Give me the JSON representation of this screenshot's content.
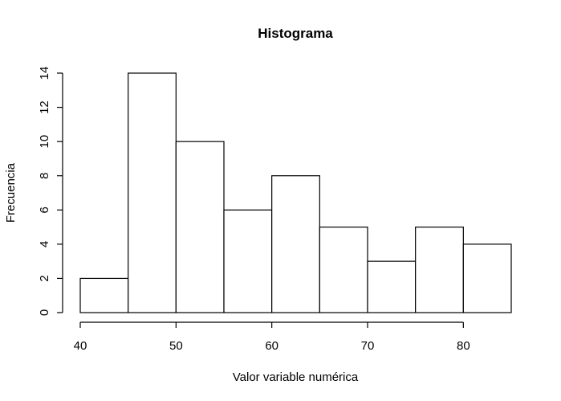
{
  "chart_data": {
    "type": "bar",
    "subtype": "histogram",
    "title": "Histograma",
    "xlabel": "Valor variable numérica",
    "ylabel": "Frecuencia",
    "bins": [
      {
        "start": 40,
        "end": 45,
        "count": 2
      },
      {
        "start": 45,
        "end": 50,
        "count": 14
      },
      {
        "start": 50,
        "end": 55,
        "count": 10
      },
      {
        "start": 55,
        "end": 60,
        "count": 6
      },
      {
        "start": 60,
        "end": 65,
        "count": 8
      },
      {
        "start": 65,
        "end": 70,
        "count": 5
      },
      {
        "start": 70,
        "end": 75,
        "count": 3
      },
      {
        "start": 75,
        "end": 80,
        "count": 5
      },
      {
        "start": 80,
        "end": 85,
        "count": 4
      }
    ],
    "xlim": [
      40,
      85
    ],
    "ylim": [
      0,
      14
    ],
    "xticks": [
      40,
      50,
      60,
      70,
      80
    ],
    "yticks": [
      0,
      2,
      4,
      6,
      8,
      10,
      12,
      14
    ],
    "grid": false,
    "legend": "none"
  }
}
